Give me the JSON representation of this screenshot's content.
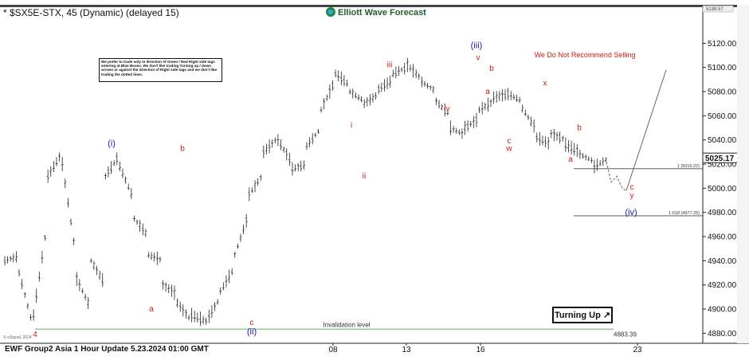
{
  "header": {
    "symbol_title": "* $SX5E-STX, 45 (Dynamic) (delayed 15)",
    "brand": "Elliott Wave Forecast",
    "top_price_tag": "5138.57"
  },
  "footer": {
    "update_label": "EWF Group2 Asia 1 Hour Update 5.23.2024 01:00 GMT",
    "copyright": "© eSignal, 2024"
  },
  "colors": {
    "wave_blue": "#1a1aa6",
    "wave_red": "#d01818",
    "invalidation_green": "#78c878",
    "bars": "#222222",
    "grid": "#e6e6e6"
  },
  "notes": {
    "disclaimer": "We prefer to trade only in direction of Green / Red Right side tags entering at Blue Boxes. We don't like trading Turning up / down arrows or against the direction of Right side tags and we don't like trading the dotted lines.",
    "recommendation": "We Do Not Recommend Selling",
    "invalidation": "Invalidation level",
    "invalidation_value": "4883.39",
    "turning_button": "Turning Up"
  },
  "chart_data": {
    "type": "ohlc",
    "title": "* $SX5E-STX, 45 (Dynamic) (delayed 15)",
    "ylim": [
      4875,
      5140
    ],
    "yticks": [
      "4880.00",
      "4900.00",
      "4920.00",
      "4940.00",
      "4960.00",
      "4980.00",
      "5000.00",
      "5020.00",
      "5040.00",
      "5060.00",
      "5080.00",
      "5100.00",
      "5120.00"
    ],
    "xticks": [
      "08",
      "13",
      "16",
      "23"
    ],
    "last_price": "5025.17",
    "price_path": [
      [
        4940,
        4944
      ],
      [
        4930,
        4884
      ],
      [
        4895,
        4975
      ],
      [
        5010,
        5030
      ],
      [
        5020,
        4940
      ],
      [
        4925,
        4900
      ],
      [
        4940,
        4920
      ],
      [
        5010,
        5028
      ],
      [
        5018,
        4990
      ],
      [
        4975,
        4960
      ],
      [
        4945,
        4940
      ],
      [
        4920,
        4912
      ],
      [
        4905,
        4890
      ],
      [
        4895,
        4890
      ],
      [
        4890,
        4910
      ],
      [
        4915,
        4935
      ],
      [
        4945,
        4980
      ],
      [
        4995,
        5012
      ],
      [
        5030,
        5042
      ],
      [
        5040,
        5020
      ],
      [
        5016,
        5020
      ],
      [
        5035,
        5050
      ],
      [
        5065,
        5090
      ],
      [
        5095,
        5085
      ],
      [
        5080,
        5072
      ],
      [
        5070,
        5078
      ],
      [
        5082,
        5090
      ],
      [
        5095,
        5100
      ],
      [
        5102,
        5090
      ],
      [
        5088,
        5080
      ],
      [
        5072,
        5060
      ],
      [
        5050,
        5044
      ],
      [
        5050,
        5058
      ],
      [
        5065,
        5072
      ],
      [
        5075,
        5078
      ],
      [
        5078,
        5072
      ],
      [
        5066,
        5048
      ],
      [
        5042,
        5036
      ],
      [
        5045,
        5040
      ],
      [
        5036,
        5030
      ],
      [
        5028,
        5022
      ],
      [
        5018,
        5025
      ]
    ],
    "projection": [
      [
        5025,
        5010
      ],
      [
        5005,
        5012
      ],
      [
        5010,
        5000
      ],
      [
        5000,
        4998
      ],
      [
        4998,
        5098
      ]
    ],
    "fib_levels": [
      {
        "label": "1 (5016.22)",
        "value": 5016.22
      },
      {
        "label": "1.618 (4977.25)",
        "value": 4977.25
      }
    ],
    "invalidation_level": 4883.39,
    "wave_labels": [
      {
        "text": "4",
        "price": 4877,
        "color": "red"
      },
      {
        "text": "(i)",
        "price": 5035,
        "color": "blue"
      },
      {
        "text": "a",
        "price": 4898,
        "color": "red"
      },
      {
        "text": "b",
        "price": 5031,
        "color": "red"
      },
      {
        "text": "c",
        "price": 4887,
        "color": "red"
      },
      {
        "text": "(ii)",
        "price": 4879,
        "color": "blue"
      },
      {
        "text": "i",
        "price": 5050,
        "color": "red"
      },
      {
        "text": "ii",
        "price": 5008,
        "color": "red"
      },
      {
        "text": "iii",
        "price": 5100,
        "color": "red"
      },
      {
        "text": "iv",
        "price": 5064,
        "color": "red"
      },
      {
        "text": "(iii)",
        "price": 5116,
        "color": "blue"
      },
      {
        "text": "v",
        "price": 5106,
        "color": "red"
      },
      {
        "text": "b",
        "price": 5097,
        "color": "red"
      },
      {
        "text": "a",
        "price": 5078,
        "color": "red"
      },
      {
        "text": "c",
        "price": 5037,
        "color": "red"
      },
      {
        "text": "w",
        "price": 5031,
        "color": "red"
      },
      {
        "text": "x",
        "price": 5085,
        "color": "red"
      },
      {
        "text": "b",
        "price": 5048,
        "color": "red"
      },
      {
        "text": "a",
        "price": 5022,
        "color": "red"
      },
      {
        "text": "c",
        "price": 4999,
        "color": "red"
      },
      {
        "text": "y",
        "price": 4992,
        "color": "red"
      },
      {
        "text": "(iv)",
        "price": 4978,
        "color": "blue"
      }
    ]
  }
}
